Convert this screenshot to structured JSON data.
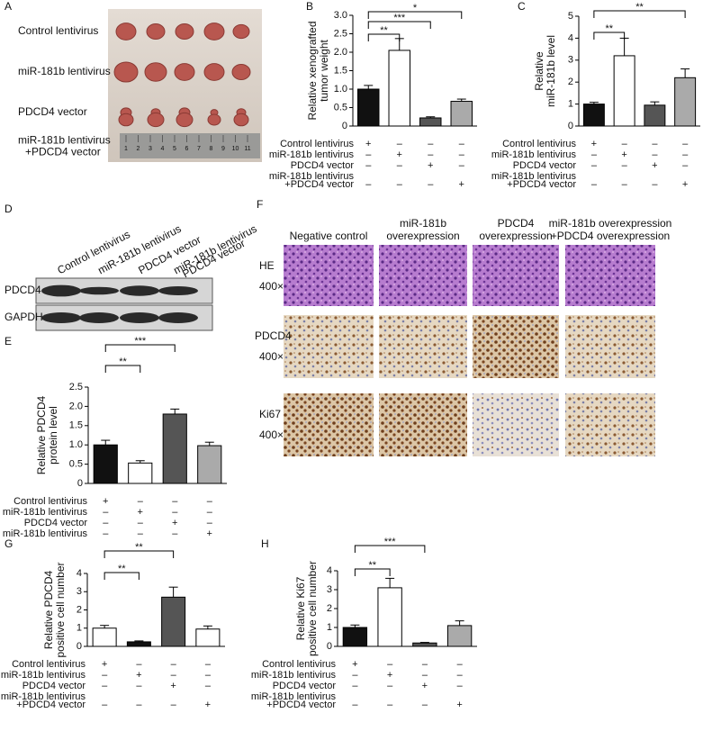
{
  "panel_labels": [
    "A",
    "B",
    "C",
    "D",
    "E",
    "F",
    "G",
    "H"
  ],
  "panel_a": {
    "row_labels": [
      [
        "Control lentivirus"
      ],
      [
        "miR-181b lentivirus"
      ],
      [
        "PDCD4 vector"
      ],
      [
        "miR-181b lentivirus",
        "+PDCD4 vector"
      ]
    ],
    "ruler_labels": [
      1,
      2,
      3,
      4,
      5,
      6,
      7,
      8,
      9,
      10,
      11
    ]
  },
  "panel_d": {
    "lane_labels": [
      [
        "Control lentivirus"
      ],
      [
        "miR-181b lentivirus"
      ],
      [
        "PDCD4 vector"
      ],
      [
        "miR-181b lentivirus",
        "PDCD4 vector"
      ]
    ],
    "row_labels": [
      "PDCD4",
      "GAPDH"
    ]
  },
  "panel_f": {
    "column_labels": [
      [
        "Negative control"
      ],
      [
        "miR-181b",
        "overexpression"
      ],
      [
        "PDCD4",
        "overexpression"
      ],
      [
        "miR-181b overexpression",
        "+PDCD4 overexpression"
      ]
    ],
    "row_labels": [
      [
        "HE",
        "400×"
      ],
      [
        "PDCD4",
        "400×"
      ],
      [
        "Ki67",
        "400×"
      ]
    ]
  },
  "chart_data": [
    {
      "type": "bar",
      "ylabel": [
        "Relative xenografted",
        "tumor weight"
      ],
      "values": [
        1.0,
        2.05,
        0.22,
        0.67
      ],
      "errors": [
        0.1,
        0.32,
        0.03,
        0.06
      ],
      "colors": [
        "#111111",
        "#ffffff",
        "#555555",
        "#aaaaaa"
      ],
      "ylim": [
        0,
        3
      ],
      "yticks": [
        0,
        0.5,
        {
          "value": 1,
          "label": "1.0"
        },
        1.5,
        {
          "value": 2,
          "label": "2.0"
        },
        2.5,
        {
          "value": 3,
          "label": "3.0"
        }
      ],
      "significance": [
        {
          "from": 0,
          "to": 1,
          "label": "**"
        },
        {
          "from": 0,
          "to": 2,
          "label": "***"
        },
        {
          "from": 0,
          "to": 3,
          "label": "*"
        }
      ],
      "conditions": [
        {
          "name": [
            "Control lentivirus"
          ],
          "signs": [
            "+",
            "–",
            "–",
            "–"
          ]
        },
        {
          "name": [
            "miR-181b lentivirus"
          ],
          "signs": [
            "–",
            "+",
            "–",
            "–"
          ]
        },
        {
          "name": [
            "PDCD4 vector"
          ],
          "signs": [
            "–",
            "–",
            "+",
            "–"
          ]
        },
        {
          "name": [
            "miR-181b lentivirus",
            "+PDCD4 vector"
          ],
          "signs": [
            "–",
            "–",
            "–",
            "+"
          ]
        }
      ]
    },
    {
      "type": "bar",
      "ylabel": [
        "Relative",
        "miR-181b level"
      ],
      "values": [
        1.0,
        3.2,
        0.95,
        2.2
      ],
      "errors": [
        0.08,
        0.8,
        0.15,
        0.4
      ],
      "colors": [
        "#111111",
        "#ffffff",
        "#555555",
        "#aaaaaa"
      ],
      "ylim": [
        0,
        5
      ],
      "yticks": [
        0,
        1,
        2,
        3,
        4,
        5
      ],
      "significance": [
        {
          "from": 0,
          "to": 1,
          "label": "**"
        },
        {
          "from": 0,
          "to": 3,
          "label": "**"
        }
      ],
      "conditions": [
        {
          "name": [
            "Control lentivirus"
          ],
          "signs": [
            "+",
            "–",
            "–",
            "–"
          ]
        },
        {
          "name": [
            "miR-181b lentivirus"
          ],
          "signs": [
            "–",
            "+",
            "–",
            "–"
          ]
        },
        {
          "name": [
            "PDCD4 vector"
          ],
          "signs": [
            "–",
            "–",
            "+",
            "–"
          ]
        },
        {
          "name": [
            "miR-181b lentivirus",
            "+PDCD4 vector"
          ],
          "signs": [
            "–",
            "–",
            "–",
            "+"
          ]
        }
      ]
    },
    {
      "type": "bar",
      "ylabel": [
        "Relative PDCD4",
        "protein level"
      ],
      "values": [
        1.0,
        0.53,
        1.8,
        0.98
      ],
      "errors": [
        0.12,
        0.06,
        0.13,
        0.09
      ],
      "colors": [
        "#111111",
        "#ffffff",
        "#555555",
        "#aaaaaa"
      ],
      "ylim": [
        0,
        2.5
      ],
      "yticks": [
        0,
        0.5,
        {
          "value": 1,
          "label": "1.0"
        },
        1.5,
        {
          "value": 2,
          "label": "2.0"
        },
        2.5
      ],
      "significance": [
        {
          "from": 0,
          "to": 1,
          "label": "**"
        },
        {
          "from": 0,
          "to": 2,
          "label": "***"
        }
      ],
      "conditions": [
        {
          "name": [
            "Control lentivirus"
          ],
          "signs": [
            "+",
            "–",
            "–",
            "–"
          ]
        },
        {
          "name": [
            "miR-181b lentivirus"
          ],
          "signs": [
            "–",
            "+",
            "–",
            "–"
          ]
        },
        {
          "name": [
            "PDCD4 vector"
          ],
          "signs": [
            "–",
            "–",
            "+",
            "–"
          ]
        },
        {
          "name": [
            "miR-181b lentivirus"
          ],
          "signs": [
            "–",
            "–",
            "–",
            "+"
          ]
        }
      ]
    },
    {
      "type": "bar",
      "ylabel": [
        "Relative PDCD4",
        "positive cell number"
      ],
      "values": [
        1.0,
        0.25,
        2.7,
        0.95
      ],
      "errors": [
        0.15,
        0.05,
        0.55,
        0.17
      ],
      "colors": [
        "#ffffff",
        "#111111",
        "#555555",
        "#ffffff"
      ],
      "ylim": [
        0,
        4
      ],
      "yticks": [
        0,
        1,
        2,
        3,
        4
      ],
      "significance": [
        {
          "from": 0,
          "to": 1,
          "label": "**"
        },
        {
          "from": 0,
          "to": 2,
          "label": "**"
        }
      ],
      "conditions": [
        {
          "name": [
            "Control lentivirus"
          ],
          "signs": [
            "+",
            "–",
            "–",
            "–"
          ]
        },
        {
          "name": [
            "miR-181b lentivirus"
          ],
          "signs": [
            "–",
            "+",
            "–",
            "–"
          ]
        },
        {
          "name": [
            "PDCD4 vector"
          ],
          "signs": [
            "–",
            "–",
            "+",
            "–"
          ]
        },
        {
          "name": [
            "miR-181b lentivirus",
            "+PDCD4 vector"
          ],
          "signs": [
            "–",
            "–",
            "–",
            "+"
          ]
        }
      ]
    },
    {
      "type": "bar",
      "ylabel": [
        "Relative Ki67",
        "positive cell number"
      ],
      "values": [
        1.0,
        3.1,
        0.18,
        1.1
      ],
      "errors": [
        0.13,
        0.5,
        0.03,
        0.25
      ],
      "colors": [
        "#111111",
        "#ffffff",
        "#555555",
        "#aaaaaa"
      ],
      "ylim": [
        0,
        4
      ],
      "yticks": [
        0,
        1,
        2,
        3,
        4
      ],
      "significance": [
        {
          "from": 0,
          "to": 1,
          "label": "**"
        },
        {
          "from": 0,
          "to": 2,
          "label": "***"
        }
      ],
      "conditions": [
        {
          "name": [
            "Control lentivirus"
          ],
          "signs": [
            "+",
            "–",
            "–",
            "–"
          ]
        },
        {
          "name": [
            "miR-181b lentivirus"
          ],
          "signs": [
            "–",
            "+",
            "–",
            "–"
          ]
        },
        {
          "name": [
            "PDCD4 vector"
          ],
          "signs": [
            "–",
            "–",
            "+",
            "–"
          ]
        },
        {
          "name": [
            "miR-181b lentivirus",
            "+PDCD4 vector"
          ],
          "signs": [
            "–",
            "–",
            "–",
            "+"
          ]
        }
      ]
    }
  ]
}
